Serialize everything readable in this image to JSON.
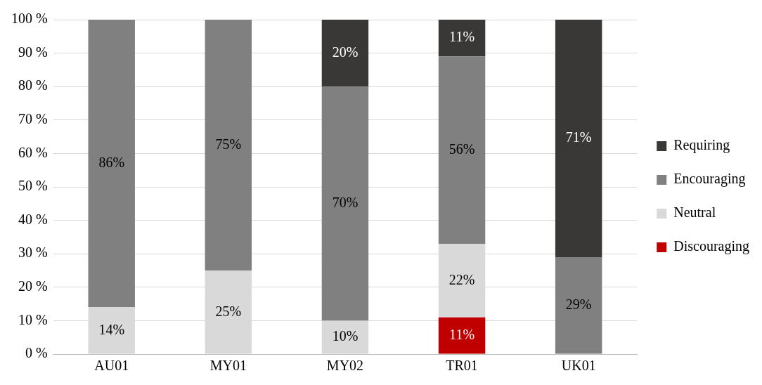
{
  "chart_data": {
    "type": "bar",
    "stacked": true,
    "categories": [
      "AU01",
      "MY01",
      "MY02",
      "TR01",
      "UK01"
    ],
    "series": [
      {
        "name": "Discouraging",
        "color": "#c00000",
        "values": [
          null,
          null,
          null,
          11,
          null
        ],
        "value_labels": [
          null,
          null,
          null,
          "11%",
          null
        ]
      },
      {
        "name": "Neutral",
        "color": "#d9d9d9",
        "values": [
          14,
          25,
          10,
          22,
          null
        ],
        "value_labels": [
          "14%",
          "25%",
          "10%",
          "22%",
          null
        ]
      },
      {
        "name": "Encouraging",
        "color": "#808080",
        "values": [
          86,
          75,
          70,
          56,
          29
        ],
        "value_labels": [
          "86%",
          "75%",
          "70%",
          "56%",
          "29%"
        ]
      },
      {
        "name": "Requiring",
        "color": "#3a3836",
        "values": [
          null,
          null,
          20,
          11,
          71
        ],
        "value_labels": [
          null,
          null,
          "20%",
          "11%",
          "71%"
        ]
      }
    ],
    "ylim": [
      0,
      100
    ],
    "yticks": [
      {
        "value": 0,
        "label": "0 %"
      },
      {
        "value": 10,
        "label": "10 %"
      },
      {
        "value": 20,
        "label": "20 %"
      },
      {
        "value": 30,
        "label": "30 %"
      },
      {
        "value": 40,
        "label": "40 %"
      },
      {
        "value": 50,
        "label": "50 %"
      },
      {
        "value": 60,
        "label": "60 %"
      },
      {
        "value": 70,
        "label": "70 %"
      },
      {
        "value": 80,
        "label": "80 %"
      },
      {
        "value": 90,
        "label": "90 %"
      },
      {
        "value": 100,
        "label": "100 %"
      }
    ],
    "grid": "y",
    "legend": "right"
  }
}
